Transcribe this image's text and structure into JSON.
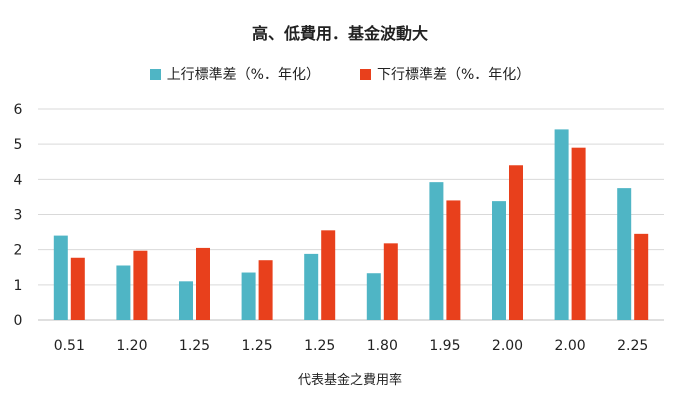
{
  "chart_data": {
    "type": "bar",
    "title": "高、低費用．基金波動大",
    "xlabel": "代表基金之費用率",
    "ylabel": "",
    "ylim": [
      0,
      6
    ],
    "yticks": [
      "0",
      "1",
      "2",
      "3",
      "4",
      "5",
      "6"
    ],
    "grid": true,
    "legend_position": "top",
    "categories": [
      "0.51",
      "1.20",
      "1.25",
      "1.25",
      "1.25",
      "1.80",
      "1.95",
      "2.00",
      "2.00",
      "2.25"
    ],
    "series": [
      {
        "name": "上行標準差（%．年化）",
        "color": "#4fb5c5",
        "values": [
          2.4,
          1.55,
          1.1,
          1.35,
          1.88,
          1.33,
          3.92,
          3.38,
          5.42,
          3.75
        ]
      },
      {
        "name": "下行標準差（%．年化）",
        "color": "#e8401c",
        "values": [
          1.77,
          1.97,
          2.05,
          1.7,
          2.55,
          2.18,
          3.4,
          4.4,
          4.9,
          2.45
        ]
      }
    ]
  }
}
